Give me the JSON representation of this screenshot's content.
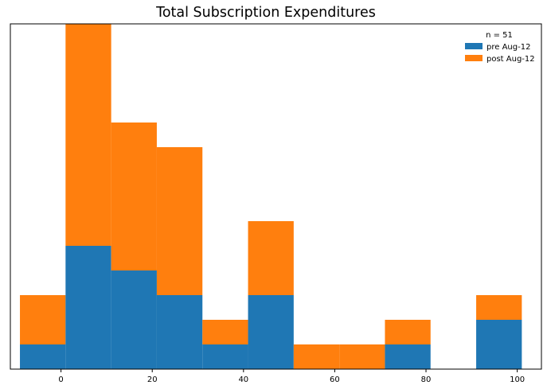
{
  "chart_data": {
    "type": "bar",
    "subtype": "stacked-histogram",
    "title": "Total Subscription Expenditures",
    "xlabel": "",
    "ylabel": "",
    "xlim": [
      -11.1,
      105.3
    ],
    "ylim": [
      0,
      14
    ],
    "x_ticks": [
      0,
      20,
      40,
      60,
      80,
      100
    ],
    "y_ticks_visible": false,
    "grid": false,
    "bin_width": 10,
    "bin_starts": [
      -9,
      1,
      11,
      21,
      31,
      41,
      51,
      61,
      71,
      81,
      91
    ],
    "series": [
      {
        "name": "pre Aug-12",
        "color": "#1f77b4",
        "values": [
          1,
          5,
          4,
          3,
          1,
          3,
          0,
          0,
          1,
          0,
          2
        ]
      },
      {
        "name": "post Aug-12",
        "color": "#ff7f0e",
        "values": [
          2,
          9,
          6,
          6,
          1,
          3,
          1,
          1,
          1,
          0,
          1
        ]
      }
    ],
    "legend": {
      "title": "n = 51",
      "placement": "top-right"
    }
  }
}
